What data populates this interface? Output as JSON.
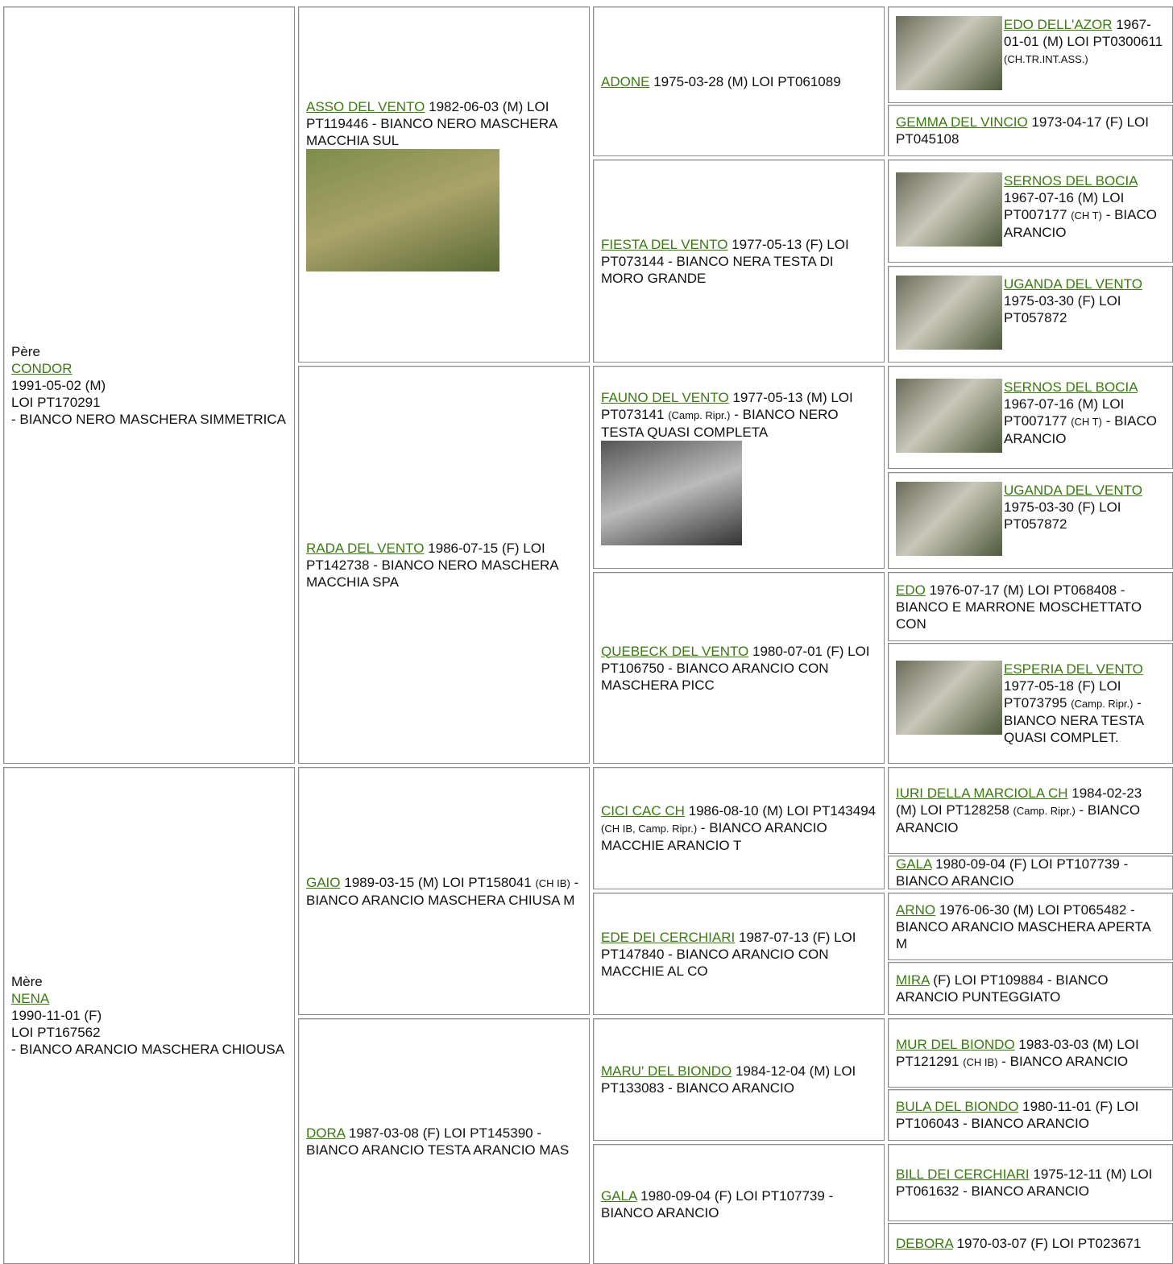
{
  "generations": [
    [
      {
        "label": "Père",
        "name": "CONDOR",
        "details": [
          "1991-05-02 (M)",
          "LOI PT170291",
          "- BIANCO NERO MASCHERA SIMMETRICA"
        ]
      },
      {
        "label": "Mère",
        "name": "NENA",
        "details": [
          "1990-11-01 (F)",
          "LOI PT167562",
          "- BIANCO ARANCIO MASCHERA CHIOUSA"
        ]
      }
    ],
    [
      {
        "name": "ASSO DEL VENTO",
        "details": [
          "1982-06-03 (M) LOI PT119446 - BIANCO NERO MASCHERA MACCHIA SUL"
        ],
        "photo": true
      },
      {
        "name": "RADA DEL VENTO",
        "details": [
          "1986-07-15 (F) LOI PT142738 - BIANCO NERO MASCHERA MACCHIA SPA"
        ]
      },
      {
        "name": "GAIO",
        "details": [
          "1989-03-15 (M) LOI PT158041",
          {
            "small": "(CH IB)"
          },
          "- BIANCO ARANCIO MASCHERA CHIUSA M"
        ]
      },
      {
        "name": "DORA",
        "details": [
          "1987-03-08 (F) LOI PT145390 - BIANCO ARANCIO TESTA ARANCIO MAS"
        ]
      }
    ],
    [
      {
        "name": "ADONE",
        "details": [
          "1975-03-28 (M) LOI PT061089"
        ]
      },
      {
        "name": "FIESTA DEL VENTO",
        "details": [
          "1977-05-13 (F) LOI PT073144 - BIANCO NERA TESTA DI MORO GRANDE"
        ]
      },
      {
        "name": "FAUNO DEL VENTO",
        "details": [
          "1977-05-13 (M) LOI PT073141",
          {
            "small": "(Camp. Ripr.)"
          },
          "- BIANCO NERO TESTA QUASI COMPLETA"
        ],
        "photo": true
      },
      {
        "name": "QUEBECK DEL VENTO",
        "details": [
          "1980-07-01 (F) LOI PT106750 - BIANCO ARANCIO CON MASCHERA PICC"
        ]
      },
      {
        "name": "CICI CAC CH",
        "details": [
          "1986-08-10 (M) LOI PT143494",
          {
            "small": "(CH IB, Camp. Ripr.)"
          },
          "- BIANCO ARANCIO MACCHIE ARANCIO T"
        ]
      },
      {
        "name": "EDE DEI CERCHIARI",
        "details": [
          "1987-07-13 (F) LOI PT147840 - BIANCO ARANCIO CON MACCHIE AL CO"
        ]
      },
      {
        "name": "MARU' DEL BIONDO",
        "details": [
          "1984-12-04 (M) LOI PT133083 - BIANCO ARANCIO"
        ]
      },
      {
        "name": "GALA",
        "details": [
          "1980-09-04 (F) LOI PT107739 - BIANCO ARANCIO"
        ]
      }
    ],
    [
      {
        "name": "EDO DELL'AZOR",
        "details": [
          "1967-01-01 (M) LOI PT0300611",
          {
            "small": "(CH.TR.INT.ASS.)"
          }
        ],
        "photo": true
      },
      {
        "name": "GEMMA DEL VINCIO",
        "details": [
          "1973-04-17 (F) LOI PT045108"
        ]
      },
      {
        "name": "SERNOS DEL BOCIA",
        "details": [
          "1967-07-16 (M) LOI PT007177",
          {
            "small": "(CH T)"
          },
          "- BIACO ARANCIO"
        ],
        "photo": true
      },
      {
        "name": "UGANDA DEL VENTO",
        "details": [
          "1975-03-30 (F) LOI PT057872"
        ],
        "photo": true
      },
      {
        "name": "SERNOS DEL BOCIA",
        "details": [
          "1967-07-16 (M) LOI PT007177",
          {
            "small": "(CH T)"
          },
          "- BIACO ARANCIO"
        ],
        "photo": true
      },
      {
        "name": "UGANDA DEL VENTO",
        "details": [
          "1975-03-30 (F) LOI PT057872"
        ],
        "photo": true
      },
      {
        "name": "EDO",
        "details": [
          "1976-07-17 (M) LOI PT068408 - BIANCO E MARRONE MOSCHETTATO CON"
        ]
      },
      {
        "name": "ESPERIA DEL VENTO",
        "details": [
          "1977-05-18 (F) LOI PT073795",
          {
            "small": "(Camp. Ripr.)"
          },
          "- BIANCO NERA TESTA QUASI COMPLET."
        ],
        "photo": true
      },
      {
        "name": "IURI DELLA MARCIOLA CH",
        "details": [
          "1984-02-23 (M) LOI PT128258",
          {
            "small": "(Camp. Ripr.)"
          },
          "- BIANCO ARANCIO"
        ]
      },
      {
        "name": "GALA",
        "details": [
          "1980-09-04 (F) LOI PT107739 - BIANCO ARANCIO"
        ]
      },
      {
        "name": "ARNO",
        "details": [
          "1976-06-30 (M) LOI PT065482 - BIANCO ARANCIO MASCHERA APERTA M"
        ]
      },
      {
        "name": "MIRA",
        "details": [
          "(F) LOI PT109884 - BIANCO ARANCIO PUNTEGGIATO"
        ]
      },
      {
        "name": "MUR DEL BIONDO",
        "details": [
          "1983-03-03 (M) LOI PT121291",
          {
            "small": "(CH IB)"
          },
          "- BIANCO ARANCIO"
        ]
      },
      {
        "name": "BULA DEL BIONDO",
        "details": [
          "1980-11-01 (F) LOI PT106043 - BIANCO ARANCIO"
        ]
      },
      {
        "name": "BILL DEI CERCHIARI",
        "details": [
          "1975-12-11 (M) LOI PT061632 - BIANCO ARANCIO"
        ]
      },
      {
        "name": "DEBORA",
        "details": [
          "1970-03-07 (F) LOI PT023671"
        ]
      }
    ]
  ]
}
